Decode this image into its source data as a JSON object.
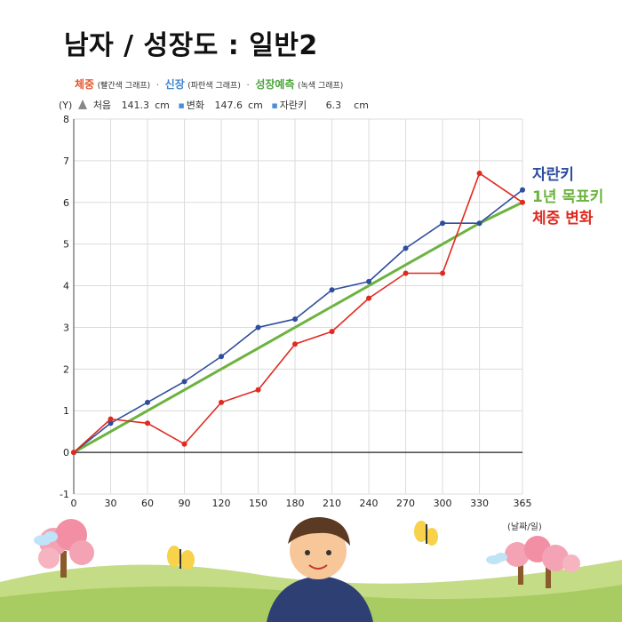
{
  "title": "남자 / 성장도 : 일반2",
  "legend": {
    "weight": {
      "key": "체중",
      "paren": "(빨간색 그래프)"
    },
    "height": {
      "key": "신장",
      "paren": "(파란색 그래프)"
    },
    "predicted": {
      "key": "성장예측",
      "paren": "(녹색 그래프)"
    },
    "sep": "·"
  },
  "info": {
    "y_tag": "(Y)",
    "start_label": "처음",
    "start_value": "141.3",
    "start_unit": "cm",
    "change_label": "변화",
    "change_value": "147.6",
    "change_unit": "cm",
    "growth_label": "자란키",
    "growth_value": "6.3",
    "growth_unit": "cm"
  },
  "right_labels": {
    "grown": "자란키",
    "target": "1년 목표키",
    "weight_change": "체중 변화"
  },
  "x_unit": "(날짜/일)",
  "colors": {
    "blue": "#2f4d9e",
    "green": "#6cb33f",
    "red": "#e02a1f",
    "grid": "#dcdcdc"
  },
  "chart_data": {
    "type": "line",
    "x": [
      0,
      30,
      60,
      90,
      120,
      150,
      180,
      210,
      240,
      270,
      300,
      330,
      365
    ],
    "xticks": [
      0,
      30,
      60,
      90,
      120,
      150,
      180,
      210,
      240,
      270,
      300,
      330,
      365
    ],
    "yticks": [
      -1,
      0,
      1,
      2,
      3,
      4,
      5,
      6,
      7,
      8
    ],
    "xlim": [
      0,
      365
    ],
    "ylim": [
      -1,
      8
    ],
    "grid": true,
    "series": [
      {
        "name": "자란키",
        "color": "#2f4d9e",
        "markers": true,
        "values": [
          0,
          0.7,
          1.2,
          1.7,
          2.3,
          3.0,
          3.2,
          3.9,
          4.1,
          4.9,
          5.5,
          5.5,
          6.3
        ]
      },
      {
        "name": "1년 목표키",
        "color": "#6cb33f",
        "markers": false,
        "values": [
          0,
          0.5,
          1.0,
          1.5,
          2.0,
          2.5,
          3.0,
          3.5,
          4.0,
          4.5,
          5.0,
          5.5,
          6.0
        ]
      },
      {
        "name": "체중 변화",
        "color": "#e02a1f",
        "markers": true,
        "values": [
          0,
          0.8,
          0.7,
          0.2,
          1.2,
          1.5,
          2.6,
          2.9,
          3.7,
          4.3,
          4.3,
          6.7,
          6.0
        ]
      }
    ]
  }
}
